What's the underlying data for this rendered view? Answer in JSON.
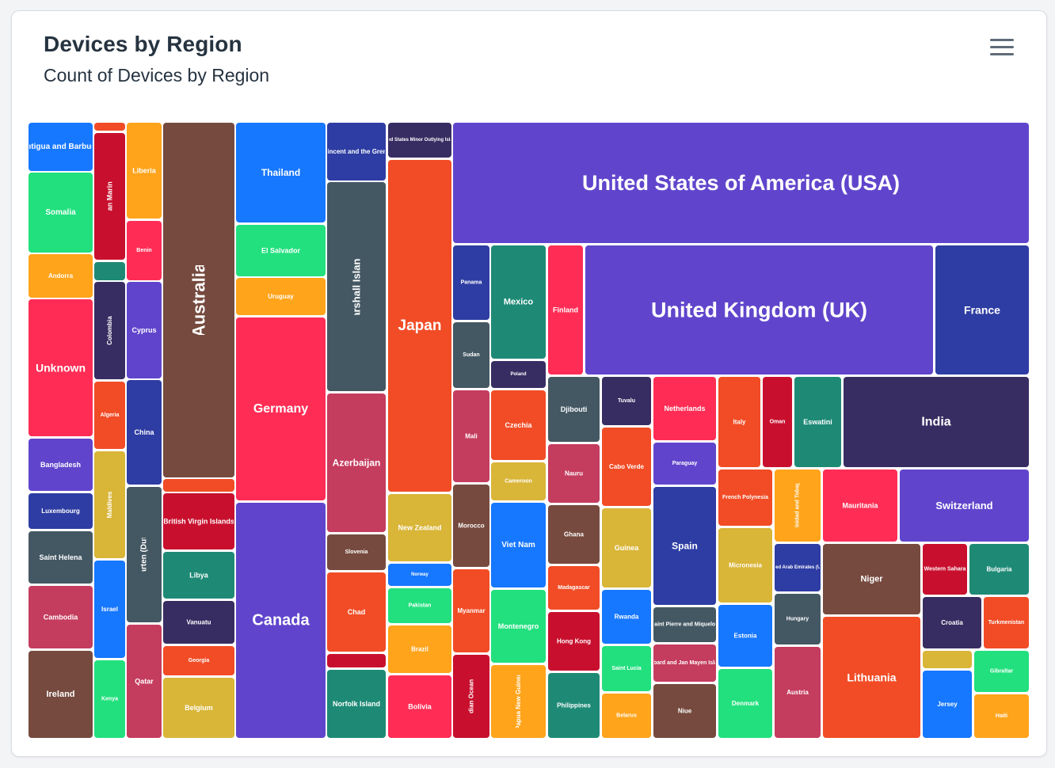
{
  "chart_data": {
    "type": "treemap",
    "title": "Devices by Region",
    "subtitle": "Count of Devices by Region",
    "series": [
      {
        "name": "Antigua and Barbuda",
        "color": "#1677ff"
      },
      {
        "name": "Somalia",
        "color": "#22e07e"
      },
      {
        "name": "Andorra",
        "color": "#ffa41b"
      },
      {
        "name": "Unknown",
        "color": "#ff2d55"
      },
      {
        "name": "Bangladesh",
        "color": "#6045cc"
      },
      {
        "name": "Luxembourg",
        "color": "#2e3da3"
      },
      {
        "name": "Saint Helena",
        "color": "#445863"
      },
      {
        "name": "Cambodia",
        "color": "#c43c5e"
      },
      {
        "name": "Ireland",
        "color": "#764a3e"
      },
      {
        "name": "",
        "color": "#f14c26"
      },
      {
        "name": "San Marino",
        "color": "#c8102e"
      },
      {
        "name": "",
        "color": "#1e8a76"
      },
      {
        "name": "Colombia",
        "color": "#382d62"
      },
      {
        "name": "Algeria",
        "color": "#f14c26"
      },
      {
        "name": "Maldives",
        "color": "#d9b538"
      },
      {
        "name": "Israel",
        "color": "#1677ff"
      },
      {
        "name": "Kenya",
        "color": "#22e07e"
      },
      {
        "name": "Liberia",
        "color": "#ffa41b"
      },
      {
        "name": "Benin",
        "color": "#ff2d55"
      },
      {
        "name": "Cyprus",
        "color": "#6045cc"
      },
      {
        "name": "China",
        "color": "#2e3da3"
      },
      {
        "name": "Sint Maarten (Dutch part)",
        "color": "#445863"
      },
      {
        "name": "Qatar",
        "color": "#c43c5e"
      },
      {
        "name": "Australia",
        "color": "#764a3e"
      },
      {
        "name": "",
        "color": "#f14c26"
      },
      {
        "name": "British Virgin Islands",
        "color": "#c8102e"
      },
      {
        "name": "Libya",
        "color": "#1e8a76"
      },
      {
        "name": "Vanuatu",
        "color": "#382d62"
      },
      {
        "name": "Georgia",
        "color": "#f14c26"
      },
      {
        "name": "Belgium",
        "color": "#d9b538"
      },
      {
        "name": "Thailand",
        "color": "#1677ff"
      },
      {
        "name": "El Salvador",
        "color": "#22e07e"
      },
      {
        "name": "Uruguay",
        "color": "#ffa41b"
      },
      {
        "name": "Germany",
        "color": "#ff2d55"
      },
      {
        "name": "Canada",
        "color": "#6045cc"
      },
      {
        "name": "Saint Vincent and the Grenadines",
        "color": "#2e3da3"
      },
      {
        "name": "Marshall Islands",
        "color": "#445863"
      },
      {
        "name": "Azerbaijan",
        "color": "#c43c5e"
      },
      {
        "name": "Slovenia",
        "color": "#764a3e"
      },
      {
        "name": "Chad",
        "color": "#f14c26"
      },
      {
        "name": "",
        "color": "#c8102e"
      },
      {
        "name": "Norfolk Island",
        "color": "#1e8a76"
      },
      {
        "name": "United States Minor Outlying Islands",
        "color": "#382d62"
      },
      {
        "name": "Japan",
        "color": "#f14c26"
      },
      {
        "name": "New Zealand",
        "color": "#d9b538"
      },
      {
        "name": "Norway",
        "color": "#1677ff"
      },
      {
        "name": "Pakistan",
        "color": "#22e07e"
      },
      {
        "name": "Brazil",
        "color": "#ffa41b"
      },
      {
        "name": "Bolivia",
        "color": "#ff2d55"
      },
      {
        "name": "United States of America (USA)",
        "color": "#6045cc"
      },
      {
        "name": "Panama",
        "color": "#2e3da3"
      },
      {
        "name": "Sudan",
        "color": "#445863"
      },
      {
        "name": "Mali",
        "color": "#c43c5e"
      },
      {
        "name": "Morocco",
        "color": "#764a3e"
      },
      {
        "name": "Myanmar",
        "color": "#f14c26"
      },
      {
        "name": "British Indian Ocean Territory",
        "color": "#c8102e"
      },
      {
        "name": "Mexico",
        "color": "#1e8a76"
      },
      {
        "name": "Poland",
        "color": "#382d62"
      },
      {
        "name": "Czechia",
        "color": "#f14c26"
      },
      {
        "name": "Cameroon",
        "color": "#d9b538"
      },
      {
        "name": "Viet Nam",
        "color": "#1677ff"
      },
      {
        "name": "Montenegro",
        "color": "#22e07e"
      },
      {
        "name": "Papua New Guinea",
        "color": "#ffa41b"
      },
      {
        "name": "Finland",
        "color": "#ff2d55"
      },
      {
        "name": "United Kingdom (UK)",
        "color": "#6045cc"
      },
      {
        "name": "France",
        "color": "#2e3da3"
      },
      {
        "name": "Djibouti",
        "color": "#445863"
      },
      {
        "name": "Nauru",
        "color": "#c43c5e"
      },
      {
        "name": "Ghana",
        "color": "#764a3e"
      },
      {
        "name": "Madagascar",
        "color": "#f14c26"
      },
      {
        "name": "Hong Kong",
        "color": "#c8102e"
      },
      {
        "name": "Philippines",
        "color": "#1e8a76"
      },
      {
        "name": "Tuvalu",
        "color": "#382d62"
      },
      {
        "name": "Cabo Verde",
        "color": "#f14c26"
      },
      {
        "name": "Guinea",
        "color": "#d9b538"
      },
      {
        "name": "Rwanda",
        "color": "#1677ff"
      },
      {
        "name": "Saint Lucia",
        "color": "#22e07e"
      },
      {
        "name": "Belarus",
        "color": "#ffa41b"
      },
      {
        "name": "Netherlands",
        "color": "#ff2d55"
      },
      {
        "name": "Paraguay",
        "color": "#6045cc"
      },
      {
        "name": "Spain",
        "color": "#2e3da3"
      },
      {
        "name": "Saint Pierre and Miquelon",
        "color": "#445863"
      },
      {
        "name": "Svalbard and Jan Mayen Islands",
        "color": "#c43c5e"
      },
      {
        "name": "Niue",
        "color": "#764a3e"
      },
      {
        "name": "Italy",
        "color": "#f14c26"
      },
      {
        "name": "Oman",
        "color": "#c8102e"
      },
      {
        "name": "Eswatini",
        "color": "#1e8a76"
      },
      {
        "name": "India",
        "color": "#382d62"
      },
      {
        "name": "French Polynesia",
        "color": "#f14c26"
      },
      {
        "name": "Micronesia",
        "color": "#d9b538"
      },
      {
        "name": "Estonia",
        "color": "#1677ff"
      },
      {
        "name": "Denmark",
        "color": "#22e07e"
      },
      {
        "name": "Trinidad and Tobago",
        "color": "#ffa41b"
      },
      {
        "name": "Mauritania",
        "color": "#ff2d55"
      },
      {
        "name": "Switzerland",
        "color": "#6045cc"
      },
      {
        "name": "United Arab Emirates (UAE)",
        "color": "#2e3da3"
      },
      {
        "name": "Hungary",
        "color": "#445863"
      },
      {
        "name": "Austria",
        "color": "#c43c5e"
      },
      {
        "name": "Niger",
        "color": "#764a3e"
      },
      {
        "name": "Lithuania",
        "color": "#f14c26"
      },
      {
        "name": "Western Sahara",
        "color": "#c8102e"
      },
      {
        "name": "Bulgaria",
        "color": "#1e8a76"
      },
      {
        "name": "Croatia",
        "color": "#382d62"
      },
      {
        "name": "Turkmenistan",
        "color": "#f14c26"
      },
      {
        "name": "",
        "color": "#d9b538"
      },
      {
        "name": "Jersey",
        "color": "#1677ff"
      },
      {
        "name": "Gibraltar",
        "color": "#22e07e"
      },
      {
        "name": "Haiti",
        "color": "#ffa41b"
      }
    ]
  }
}
